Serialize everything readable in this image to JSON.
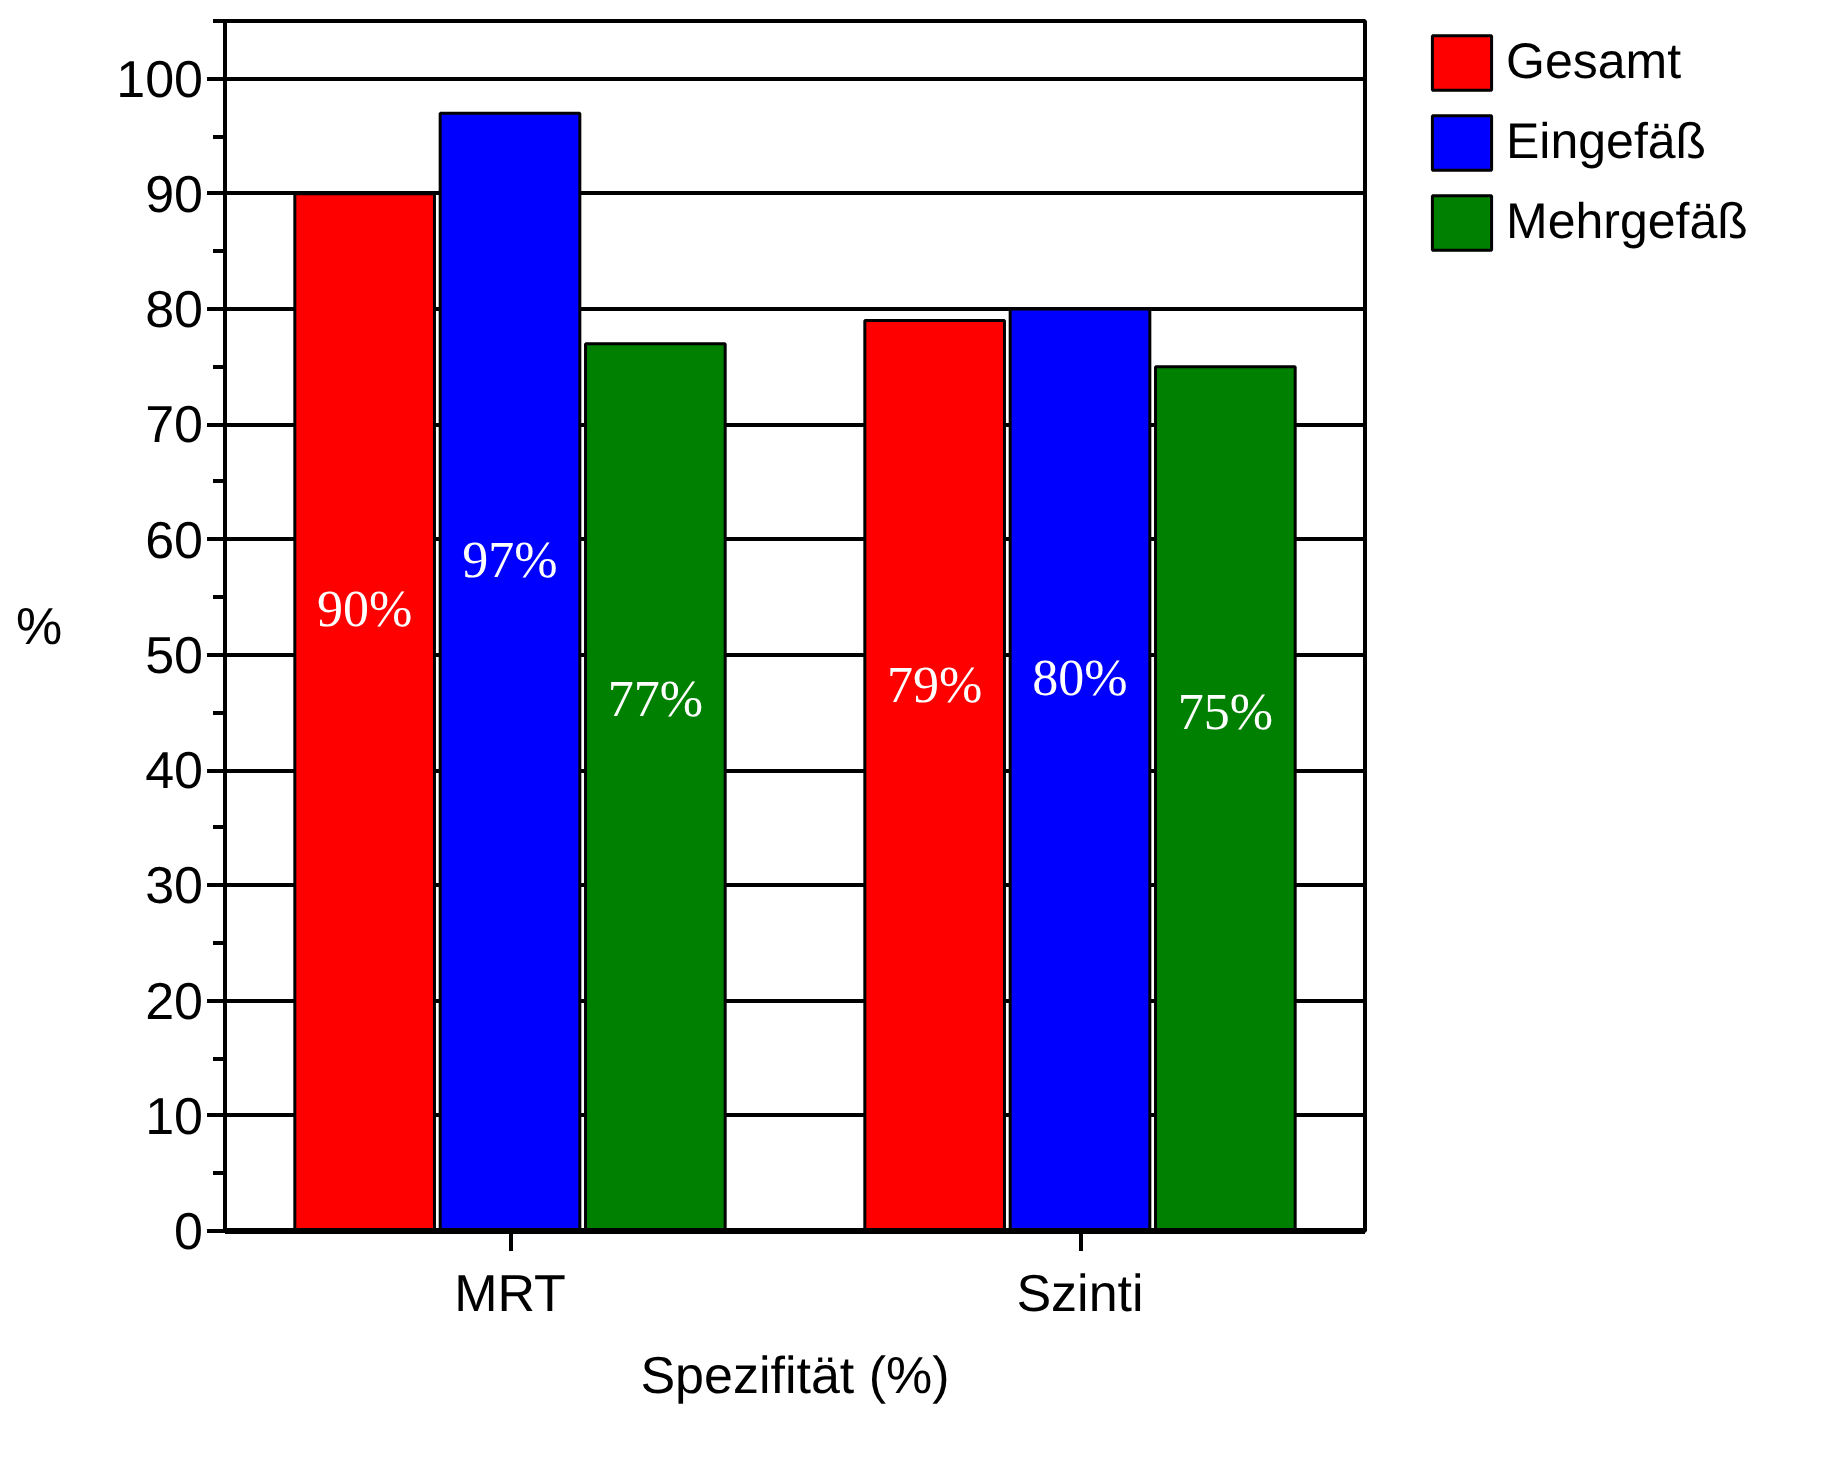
{
  "chart_data": {
    "type": "bar",
    "xlabel": "Spezifität (%)",
    "ylabel": "%",
    "categories": [
      "MRT",
      "Szinti"
    ],
    "series": [
      {
        "name": "Gesamt",
        "color": "#ff0000",
        "values": [
          90,
          79
        ],
        "value_labels": [
          "90%",
          "79%"
        ]
      },
      {
        "name": "Eingefäß",
        "color": "#0000ff",
        "values": [
          97,
          80
        ],
        "value_labels": [
          "97%",
          "80%"
        ]
      },
      {
        "name": "Mehrgefäß",
        "color": "#008000",
        "values": [
          77,
          75
        ],
        "value_labels": [
          "77%",
          "75%"
        ]
      }
    ],
    "ylim": [
      0,
      105
    ],
    "yticks": [
      0,
      10,
      20,
      30,
      40,
      50,
      60,
      70,
      80,
      90,
      100
    ],
    "grid": "y",
    "legend": "top right"
  }
}
